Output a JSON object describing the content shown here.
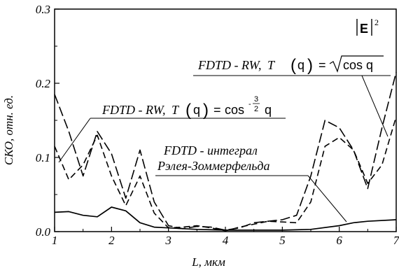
{
  "chart_data": {
    "type": "line",
    "xlabel": "L, мкм",
    "ylabel": "СКО, отн. ед.",
    "xlim": [
      1,
      7
    ],
    "ylim": [
      0,
      0.3
    ],
    "xticks": [
      "1",
      "2",
      "3",
      "4",
      "5",
      "6",
      "7"
    ],
    "yticks": [
      "0.0",
      "0.1",
      "0.2",
      "0.3"
    ],
    "grid": false,
    "quantity_label": {
      "base": "E",
      "exponent": "2"
    },
    "series": [
      {
        "label_prefix": "FDTD - RW,",
        "label_t": "T",
        "label_arg": "q",
        "label_rhs": "cos q",
        "style": "dashed-long",
        "x": [
          1.0,
          1.25,
          1.5,
          1.75,
          2.0,
          2.25,
          2.5,
          2.75,
          3.0,
          3.25,
          3.5,
          3.75,
          4.0,
          4.25,
          4.5,
          4.75,
          5.0,
          5.25,
          5.5,
          5.75,
          6.0,
          6.25,
          6.5,
          6.75,
          7.0
        ],
        "y": [
          0.185,
          0.135,
          0.075,
          0.135,
          0.105,
          0.045,
          0.11,
          0.04,
          0.008,
          0.004,
          0.007,
          0.006,
          0.002,
          0.005,
          0.012,
          0.014,
          0.016,
          0.022,
          0.075,
          0.15,
          0.14,
          0.11,
          0.058,
          0.14,
          0.215
        ]
      },
      {
        "label_prefix": "FDTD - RW,",
        "label_t": "T",
        "label_arg": "q",
        "label_rhs": "cos",
        "label_exponent_num": "3",
        "label_exponent_den": "2",
        "label_exponent_sign": "-",
        "label_rhs_arg": "q",
        "style": "dashed-short",
        "x": [
          1.0,
          1.25,
          1.5,
          1.75,
          2.0,
          2.25,
          2.5,
          2.75,
          3.0,
          3.25,
          3.5,
          3.75,
          4.0,
          4.25,
          4.5,
          4.75,
          5.0,
          5.25,
          5.5,
          5.75,
          6.0,
          6.25,
          6.5,
          6.75,
          7.0
        ],
        "y": [
          0.115,
          0.07,
          0.09,
          0.13,
          0.075,
          0.035,
          0.075,
          0.025,
          0.005,
          0.006,
          0.008,
          0.005,
          0.001,
          0.006,
          0.01,
          0.014,
          0.013,
          0.012,
          0.04,
          0.115,
          0.127,
          0.11,
          0.065,
          0.09,
          0.155
        ]
      },
      {
        "label_line1": "FDTD - интеграл",
        "label_line2": "Рэлея-Зоммерфельда",
        "style": "solid",
        "x": [
          1.0,
          1.25,
          1.5,
          1.75,
          2.0,
          2.25,
          2.5,
          2.75,
          3.0,
          3.5,
          4.0,
          4.5,
          5.0,
          5.5,
          6.0,
          6.25,
          6.5,
          7.0
        ],
        "y": [
          0.026,
          0.027,
          0.022,
          0.02,
          0.033,
          0.028,
          0.012,
          0.006,
          0.005,
          0.003,
          0.002,
          0.002,
          0.002,
          0.003,
          0.008,
          0.012,
          0.014,
          0.016
        ]
      }
    ]
  }
}
